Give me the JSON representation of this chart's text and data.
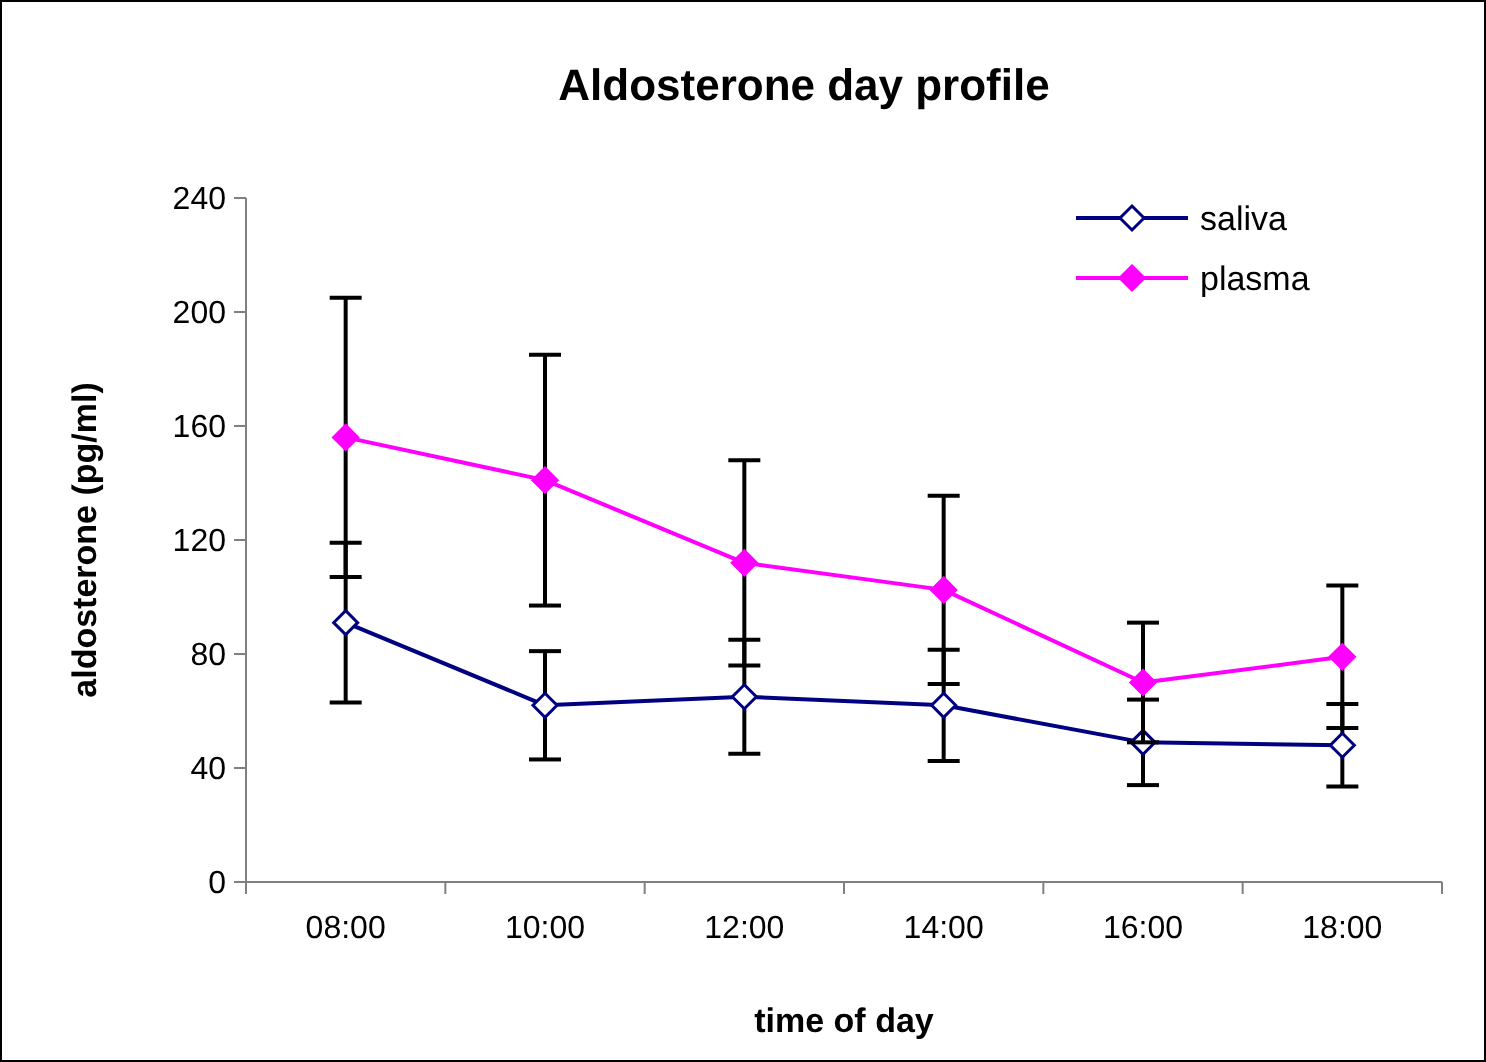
{
  "chart_data": {
    "type": "line",
    "title": "Aldosterone day profile",
    "xlabel": "time of day",
    "ylabel": "aldosterone (pg/ml)",
    "categories": [
      "08:00",
      "10:00",
      "12:00",
      "14:00",
      "16:00",
      "18:00"
    ],
    "series": [
      {
        "name": "saliva",
        "color": "#000080",
        "marker": "diamond",
        "values": [
          91,
          62,
          65,
          62,
          49,
          48
        ],
        "errors": [
          28,
          19,
          20,
          19.5,
          15,
          14.5
        ]
      },
      {
        "name": "plasma",
        "color": "#ff00ff",
        "marker": "diamond",
        "values": [
          156,
          141,
          112,
          102.5,
          70,
          79
        ],
        "errors": [
          49,
          44,
          36,
          33,
          21,
          25
        ]
      }
    ],
    "ylim": [
      0,
      240
    ],
    "yticks": [
      0,
      40,
      80,
      120,
      160,
      200,
      240
    ],
    "grid": false,
    "legend": "top right"
  }
}
